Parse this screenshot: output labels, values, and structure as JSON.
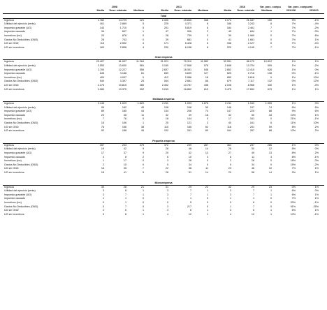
{
  "years": [
    "2008",
    "2011",
    "2016"
  ],
  "var_labels": [
    "Var. porc. compu",
    "Var. porc. compuest"
  ],
  "col_headers": [
    "Media",
    "Desv. estánda",
    "Mediana",
    "Media",
    "Desv. estánda",
    "Mediana",
    "Media",
    "Desv. estánda",
    "Mediana",
    "2011/08",
    "2016/11"
  ],
  "sections": [
    {
      "title": "Total",
      "rows": [
        {
          "label": "Ingresos",
          "values": [
            "1.782",
            "14.729",
            "121",
            "2.340",
            "19.835",
            "168",
            "2.174",
            "21.187",
            "150",
            "9%",
            "-1%"
          ]
        },
        {
          "label": "Utilidad del ejercicio (renta)",
          "values": [
            "161",
            "2.869",
            "5",
            "225",
            "4.371",
            "8",
            "186",
            "3.242",
            "6",
            "7%",
            "-4%"
          ]
        },
        {
          "label": "Impuesto gravable (UG)",
          "values": [
            "143",
            "1.710",
            "5",
            "201",
            "5.819",
            "8",
            "184",
            "2.461",
            "7",
            "7%",
            "-2%"
          ]
        },
        {
          "label": "Impuesto causado",
          "values": [
            "34",
            "697",
            "1",
            "47",
            "906",
            "2",
            "40",
            "844",
            "1",
            "7%",
            "-3%"
          ]
        },
        {
          "label": "Incentivos (inc)",
          "values": [
            "20",
            "878",
            "0",
            "28",
            "739",
            "0",
            "39",
            "1.969",
            "0",
            "7%",
            "6%"
          ]
        },
        {
          "label": "Gastos No Deducibles (GND)",
          "values": [
            "28",
            "743",
            "0",
            "39",
            "681",
            "0",
            "41",
            "1.661",
            "0",
            "7%",
            "1%"
          ]
        },
        {
          "label": "UG sin GND",
          "values": [
            "115",
            "2.592",
            "4",
            "171",
            "5.428",
            "6",
            "158",
            "2.127",
            "5",
            "7%",
            "-4%"
          ]
        },
        {
          "label": "UG sin incentivos",
          "values": [
            "163",
            "2.858",
            "4",
            "230",
            "6.158",
            "8",
            "220",
            "4.145",
            "7",
            "7%",
            "-1%"
          ]
        }
      ]
    },
    {
      "title": "Gran empresa",
      "rows": [
        {
          "label": "Ingresos",
          "values": [
            "29.407",
            "61.007",
            "11.264",
            "31.021",
            "75.310",
            "11.582",
            "32.281",
            "86.170",
            "10.812",
            "1%",
            "1%"
          ]
        },
        {
          "label": "Utilidad del ejercicio (renta)",
          "values": [
            "3.053",
            "13.630",
            "581",
            "3.180",
            "17.558",
            "578",
            "2.848",
            "13.704",
            "509",
            "1%",
            "-2%"
          ]
        },
        {
          "label": "Impuesto gravable (UG)",
          "values": [
            "2.700",
            "12.227",
            "556",
            "2.837",
            "18.351",
            "548",
            "2.852",
            "12.415",
            "628",
            "1%",
            "0%"
          ]
        },
        {
          "label": "Impuesto causado",
          "values": [
            "645",
            "3.188",
            "81",
            "659",
            "3.639",
            "127",
            "625",
            "2.716",
            "138",
            "0%",
            "-1%"
          ]
        },
        {
          "label": "Incentivos (inc)",
          "values": [
            "400",
            "4.047",
            "0",
            "412",
            "2.988",
            "18",
            "650",
            "9.618",
            "0",
            "1%",
            "10%"
          ]
        },
        {
          "label": "Gastos No Deducibles (GND)",
          "values": [
            "540",
            "3.397",
            "25",
            "544",
            "2.681",
            "66",
            "679",
            "7.117",
            "132",
            "0%",
            "12%"
          ]
        },
        {
          "label": "UG sin GND",
          "values": [
            "2.276",
            "10.815",
            "280",
            "2.402",
            "13.787",
            "438",
            "2.108",
            "8.968",
            "430",
            "1%",
            "-3%"
          ]
        },
        {
          "label": "UG sin incentivos",
          "values": [
            "3.089",
            "13.375",
            "392",
            "3.249",
            "16.862",
            "619",
            "3.475",
            "17.802",
            "679",
            "1%",
            "1%"
          ]
        }
      ]
    },
    {
      "title": "Mediana empresa",
      "rows": [
        {
          "label": "Ingresos",
          "values": [
            "2.145",
            "1.029",
            "1.820",
            "2.211",
            "1.093",
            "1.876",
            "2.211",
            "1.043",
            "1.905",
            "1%",
            "0%"
          ]
        },
        {
          "label": "Utilidad del ejercicio (renta)",
          "values": [
            "95",
            "182",
            "45",
            "108",
            "248",
            "59",
            "146",
            "247",
            "74",
            "8%",
            "6%"
          ]
        },
        {
          "label": "Impuesto gravable (UG)",
          "values": [
            "89",
            "185",
            "44",
            "134",
            "206",
            "74",
            "147",
            "225",
            "88",
            "9%",
            "6%"
          ]
        },
        {
          "label": "Impuesto causado",
          "values": [
            "20",
            "38",
            "11",
            "32",
            "49",
            "18",
            "32",
            "50",
            "18",
            "10%",
            "1%"
          ]
        },
        {
          "label": "Incentivos (inc)",
          "values": [
            "7",
            "76",
            "0",
            "18",
            "144",
            "0",
            "17",
            "161",
            "0",
            "21%",
            "-1%"
          ]
        },
        {
          "label": "Gastos No Deducibles (GND)",
          "values": [
            "15",
            "106",
            "1",
            "25",
            "121",
            "3",
            "40",
            "161",
            "6",
            "11%",
            "10%"
          ]
        },
        {
          "label": "UG sin GND",
          "values": [
            "76",
            "156",
            "38",
            "110",
            "185",
            "62",
            "118",
            "201",
            "59",
            "8%",
            "2%"
          ]
        },
        {
          "label": "UG sin incentivos",
          "values": [
            "92",
            "188",
            "45",
            "152",
            "261",
            "80",
            "164",
            "287",
            "88",
            "10%",
            "2%"
          ]
        }
      ]
    },
    {
      "title": "Pequeña empresa",
      "rows": [
        {
          "label": "Ingresos",
          "values": [
            "357",
            "233",
            "279",
            "372",
            "239",
            "287",
            "364",
            "237",
            "286",
            "1%",
            "0%"
          ]
        },
        {
          "label": "Utilidad del ejercicio (renta)",
          "values": [
            "19",
            "42",
            "9",
            "28",
            "48",
            "14",
            "28",
            "50",
            "12",
            "8%",
            "0%"
          ]
        },
        {
          "label": "Impuesto gravable (UG)",
          "values": [
            "17",
            "37",
            "9",
            "25",
            "42",
            "13",
            "27",
            "49",
            "13",
            "8%",
            "2%"
          ]
        },
        {
          "label": "Impuesto causado",
          "values": [
            "4",
            "8",
            "2",
            "6",
            "10",
            "3",
            "6",
            "11",
            "3",
            "8%",
            "-1%"
          ]
        },
        {
          "label": "Incentivos (inc)",
          "values": [
            "1",
            "17",
            "0",
            "3",
            "28",
            "0",
            "2",
            "28",
            "0",
            "18%",
            "-3%"
          ]
        },
        {
          "label": "Gastos No Deducibles (GND)",
          "values": [
            "2",
            "15",
            "0",
            "5",
            "34",
            "0",
            "5",
            "34",
            "0",
            "15%",
            "-2%"
          ]
        },
        {
          "label": "UG sin GND",
          "values": [
            "16",
            "36",
            "7",
            "22",
            "38",
            "11",
            "23",
            "46",
            "10",
            "7%",
            "1%"
          ]
        },
        {
          "label": "UG sin incentivos",
          "values": [
            "18",
            "41",
            "9",
            "28",
            "51",
            "14",
            "29",
            "58",
            "14",
            "9%",
            "1%"
          ]
        }
      ]
    },
    {
      "title": "Microempresa",
      "rows": [
        {
          "label": "Ingresos",
          "values": [
            "30",
            "28",
            "21",
            "31",
            "29",
            "22",
            "32",
            "29",
            "23",
            "0%",
            "1%"
          ]
        },
        {
          "label": "Utilidad del ejercicio (renta)",
          "values": [
            "3",
            "8",
            "1",
            "3",
            "7",
            "1",
            "3",
            "7",
            "1",
            "6%",
            "0%"
          ]
        },
        {
          "label": "Impuesto gravable (UG)",
          "values": [
            "3",
            "7",
            "1",
            "3",
            "7",
            "1",
            "3",
            "7",
            "1",
            "6%",
            "1%"
          ]
        },
        {
          "label": "Impuesto causado",
          "values": [
            "1",
            "1",
            "0",
            "1",
            "1",
            "0",
            "1",
            "1",
            "0",
            "7%",
            "1%"
          ]
        },
        {
          "label": "Incentivos (inc)",
          "values": [
            "0",
            "1",
            "0",
            "0",
            "5",
            "0",
            "0",
            "6",
            "0",
            "20%",
            "-1%"
          ]
        },
        {
          "label": "Gastos No Deducibles (GND)",
          "values": [
            "0",
            "7",
            "0",
            "3",
            "217",
            "0",
            "1",
            "7",
            "0",
            "91%",
            "-25%"
          ]
        },
        {
          "label": "UG sin GND",
          "values": [
            "2",
            "6",
            "1",
            "3",
            "6",
            "1",
            "3",
            "6",
            "1",
            "6%",
            "1%"
          ]
        },
        {
          "label": "UG sin incentivos",
          "values": [
            "3",
            "8",
            "1",
            "4",
            "12",
            "1",
            "4",
            "12",
            "1",
            "10%",
            "-1%"
          ]
        }
      ]
    }
  ]
}
